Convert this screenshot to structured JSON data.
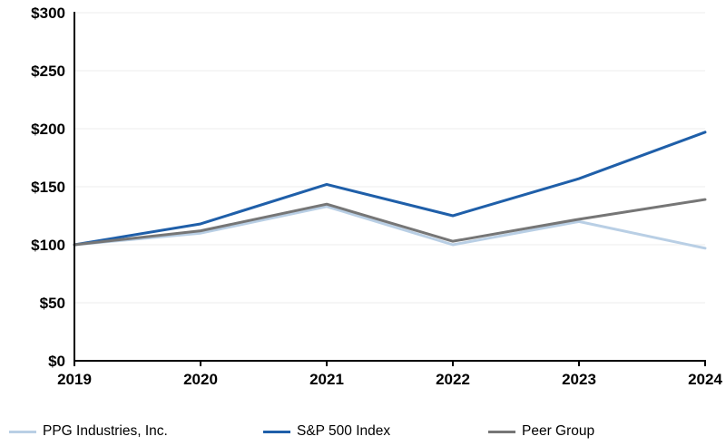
{
  "chart_data": {
    "type": "line",
    "title": "",
    "xlabel": "",
    "ylabel": "",
    "categories": [
      "2019",
      "2020",
      "2021",
      "2022",
      "2023",
      "2024"
    ],
    "series": [
      {
        "name": "PPG Industries, Inc.",
        "color": "#b9cfe5",
        "values": [
          100,
          110,
          133,
          100,
          120,
          97
        ]
      },
      {
        "name": "S&P 500 Index",
        "color": "#1f5fa9",
        "values": [
          100,
          118,
          152,
          125,
          157,
          197
        ]
      },
      {
        "name": "Peer Group",
        "color": "#767676",
        "values": [
          100,
          112,
          135,
          103,
          122,
          139
        ]
      }
    ],
    "ylim": [
      0,
      300
    ],
    "yticks": [
      0,
      50,
      100,
      150,
      200,
      250,
      300
    ],
    "ytick_labels": [
      "$0",
      "$50",
      "$100",
      "$150",
      "$200",
      "$250",
      "$300"
    ],
    "grid": "horizontal-faint",
    "grid_color": "#f4f4f4",
    "axis_color": "#000000",
    "legend_position": "bottom"
  }
}
